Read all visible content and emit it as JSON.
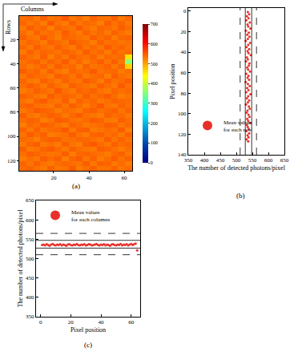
{
  "chart_data": [
    {
      "type": "heatmap",
      "panel_label": "(a)",
      "xlabel": "Columns",
      "ylabel": "Rows",
      "color": "jet",
      "x": [
        2.5,
        6.5,
        10.5,
        14.5,
        18.5,
        22.5,
        26.5,
        30.5,
        34.5,
        38.5,
        42.5,
        46.5,
        50.5,
        54.5,
        58.5,
        62.5
      ],
      "y": [
        2.5,
        6.5,
        10.5,
        14.5,
        18.5,
        22.5,
        26.5,
        30.5,
        34.5,
        38.5,
        42.5,
        46.5,
        50.5,
        54.5,
        58.5,
        62.5,
        66.5,
        70.5,
        74.5,
        78.5,
        82.5,
        86.5,
        90.5,
        94.5,
        98.5,
        102.5,
        106.5,
        110.5,
        114.5,
        118.5,
        122.5,
        126.5
      ],
      "cells": [
        [
          536,
          541,
          529,
          547,
          533,
          538,
          552,
          531,
          540,
          527,
          545,
          536,
          534,
          549,
          530,
          542
        ],
        [
          544,
          532,
          539,
          528,
          551,
          535,
          529,
          546,
          533,
          541,
          537,
          526,
          548,
          535,
          543,
          531
        ],
        [
          530,
          548,
          537,
          542,
          526,
          544,
          538,
          533,
          550,
          536,
          529,
          544,
          539,
          532,
          547,
          538
        ],
        [
          539,
          527,
          546,
          535,
          540,
          531,
          549,
          537,
          528,
          545,
          534,
          541,
          530,
          546,
          536,
          528
        ],
        [
          547,
          535,
          531,
          550,
          537,
          528,
          543,
          540,
          535,
          531,
          548,
          537,
          544,
          529,
          541,
          545
        ],
        [
          533,
          543,
          538,
          529,
          546,
          539,
          532,
          551,
          541,
          538,
          527,
          546,
          535,
          540,
          532,
          537
        ],
        [
          541,
          530,
          549,
          537,
          532,
          547,
          536,
          528,
          546,
          533,
          542,
          531,
          550,
          537,
          544,
          533
        ],
        [
          528,
          546,
          535,
          543,
          539,
          534,
          545,
          539,
          530,
          549,
          536,
          543,
          529,
          545,
          535,
          540
        ],
        [
          545,
          537,
          530,
          548,
          527,
          542,
          531,
          547,
          538,
          535,
          544,
          528,
          541,
          536,
          540,
          455
        ],
        [
          534,
          542,
          547,
          533,
          544,
          536,
          550,
          532,
          543,
          528,
          539,
          548,
          533,
          547,
          531,
          360
        ],
        [
          540,
          529,
          536,
          545,
          531,
          549,
          538,
          541,
          527,
          546,
          532,
          537,
          545,
          530,
          543,
          470
        ],
        [
          549,
          538,
          543,
          530,
          546,
          533,
          527,
          544,
          536,
          540,
          551,
          534,
          539,
          542,
          528,
          536
        ],
        [
          532,
          545,
          540,
          536,
          529,
          548,
          541,
          533,
          547,
          531,
          538,
          543,
          527,
          549,
          537,
          530
        ],
        [
          543,
          531,
          528,
          547,
          538,
          530,
          545,
          536,
          532,
          550,
          541,
          529,
          546,
          534,
          539,
          548
        ],
        [
          537,
          549,
          542,
          531,
          545,
          536,
          529,
          548,
          540,
          534,
          530,
          547,
          538,
          531,
          551,
          535
        ],
        [
          529,
          536,
          547,
          540,
          533,
          551,
          537,
          530,
          544,
          539,
          546,
          535,
          529,
          543,
          536,
          542
        ],
        [
          546,
          540,
          533,
          528,
          549,
          537,
          544,
          539,
          531,
          547,
          535,
          541,
          550,
          538,
          527,
          533
        ],
        [
          535,
          528,
          544,
          551,
          536,
          532,
          548,
          527,
          545,
          536,
          543,
          530,
          537,
          546,
          541,
          539
        ],
        [
          542,
          547,
          537,
          534,
          530,
          545,
          533,
          549,
          538,
          528,
          540,
          552,
          534,
          531,
          544,
          536
        ],
        [
          531,
          539,
          550,
          545,
          541,
          528,
          539,
          535,
          529,
          543,
          547,
          536,
          542,
          548,
          533,
          545
        ],
        [
          548,
          533,
          529,
          539,
          547,
          543,
          530,
          542,
          551,
          537,
          532,
          528,
          545,
          537,
          540,
          530
        ],
        [
          538,
          546,
          541,
          527,
          534,
          550,
          546,
          536,
          533,
          540,
          549,
          544,
          531,
          529,
          547,
          538
        ],
        [
          527,
          541,
          536,
          548,
          543,
          535,
          528,
          545,
          539,
          530,
          536,
          539,
          548,
          544,
          532,
          541
        ],
        [
          544,
          530,
          545,
          533,
          539,
          541,
          551,
          531,
          546,
          548,
          528,
          533,
          540,
          535,
          549,
          527
        ],
        [
          533,
          550,
          538,
          546,
          528,
          532,
          537,
          549,
          535,
          529,
          544,
          547,
          536,
          542,
          530,
          546
        ],
        [
          541,
          535,
          527,
          542,
          548,
          546,
          534,
          538,
          543,
          541,
          537,
          531,
          549,
          533,
          545,
          534
        ],
        [
          530,
          543,
          549,
          530,
          537,
          529,
          547,
          533,
          528,
          546,
          552,
          540,
          532,
          547,
          538,
          543
        ],
        [
          547,
          529,
          534,
          544,
          551,
          540,
          531,
          546,
          537,
          533,
          530,
          548,
          543,
          536,
          528,
          537
        ],
        [
          536,
          548,
          543,
          537,
          532,
          535,
          549,
          528,
          541,
          545,
          539,
          535,
          529,
          541,
          546,
          531
        ],
        [
          528,
          538,
          531,
          549,
          540,
          547,
          526,
          543,
          550,
          532,
          545,
          527,
          538,
          550,
          534,
          544
        ],
        [
          545,
          533,
          548,
          535,
          529,
          538,
          543,
          537,
          534,
          549,
          531,
          546,
          544,
          530,
          539,
          529
        ],
        [
          539,
          544,
          536,
          529,
          546,
          531,
          535,
          550,
          528,
          538,
          547,
          533,
          535,
          545,
          532,
          540
        ]
      ],
      "xlim": [
        0.5,
        64.5
      ],
      "xticks": [
        20,
        40,
        60
      ],
      "ylim": [
        128.5,
        0.5
      ],
      "yticks": [
        20,
        40,
        60,
        80,
        100,
        120
      ],
      "colorbar": {
        "range": [
          0,
          700
        ],
        "ticks": [
          0,
          100,
          200,
          300,
          400,
          500,
          600,
          700
        ]
      }
    },
    {
      "type": "scatter",
      "panel_label": "(b)",
      "xlabel": "The number of detected photons/pixel",
      "ylabel": "Pixel position",
      "legend": "lower left",
      "series": [
        {
          "name": "Mean values\nfor each row",
          "color": "#e8302a",
          "marker": "circle",
          "x": [
            536,
            540,
            533,
            538,
            531,
            542,
            535,
            537,
            544,
            530,
            539,
            534,
            541,
            536,
            529,
            543,
            537,
            532,
            540,
            535,
            538,
            545,
            533,
            536,
            530,
            541,
            539,
            534,
            537,
            543,
            531,
            538,
            535,
            540,
            529,
            536,
            542,
            534,
            538,
            531,
            544,
            537,
            533,
            540,
            536,
            530,
            539,
            542,
            535,
            532,
            538,
            541,
            534,
            537,
            543,
            533,
            536,
            539,
            531,
            540,
            535,
            538,
            532,
            537
          ],
          "y": [
            1,
            3,
            5,
            7,
            9,
            11,
            13,
            15,
            17,
            19,
            21,
            23,
            25,
            27,
            29,
            31,
            33,
            35,
            37,
            39,
            41,
            43,
            45,
            47,
            49,
            51,
            53,
            55,
            57,
            59,
            61,
            63,
            65,
            67,
            69,
            71,
            73,
            75,
            77,
            79,
            81,
            83,
            85,
            87,
            89,
            91,
            93,
            95,
            97,
            99,
            101,
            103,
            105,
            107,
            109,
            111,
            113,
            115,
            117,
            119,
            121,
            123,
            125,
            127
          ]
        }
      ],
      "x_lines": [
        {
          "value": 512,
          "line_style": "dashed"
        },
        {
          "value": 528,
          "line_style": "solid"
        },
        {
          "value": 548,
          "line_style": "solid"
        },
        {
          "value": 563,
          "line_style": "dashed"
        }
      ],
      "xlim": [
        350,
        650
      ],
      "xticks": [
        350,
        400,
        450,
        500,
        550,
        600,
        650
      ],
      "ylim": [
        140,
        -3
      ],
      "yticks": [
        0,
        20,
        40,
        60,
        80,
        100,
        120,
        140
      ]
    },
    {
      "type": "scatter",
      "panel_label": "(c)",
      "xlabel": "Pixel position",
      "ylabel": "The number of detected photons/pixel",
      "legend": "upper left",
      "series": [
        {
          "name": "Mean values\nfor each columns",
          "color": "#e8302a",
          "marker": "circle",
          "x": [
            1,
            2,
            3,
            4,
            5,
            6,
            7,
            8,
            9,
            10,
            11,
            12,
            13,
            14,
            15,
            16,
            17,
            18,
            19,
            20,
            21,
            22,
            23,
            24,
            25,
            26,
            27,
            28,
            29,
            30,
            31,
            32,
            33,
            34,
            35,
            36,
            37,
            38,
            39,
            40,
            41,
            42,
            43,
            44,
            45,
            46,
            47,
            48,
            49,
            50,
            51,
            52,
            53,
            54,
            55,
            56,
            57,
            58,
            59,
            60,
            61,
            62,
            63,
            64
          ],
          "y": [
            535,
            536,
            534,
            537,
            535,
            533,
            536,
            538,
            535,
            534,
            536,
            535,
            537,
            534,
            536,
            535,
            533,
            536,
            537,
            535,
            534,
            536,
            535,
            538,
            535,
            534,
            536,
            535,
            537,
            534,
            535,
            537,
            536,
            534,
            535,
            536,
            538,
            535,
            534,
            536,
            535,
            537,
            534,
            536,
            535,
            533,
            536,
            537,
            535,
            534,
            536,
            535,
            538,
            534,
            536,
            535,
            537,
            534,
            536,
            538,
            535,
            537,
            539,
            521
          ]
        }
      ],
      "y_lines": [
        {
          "value": 510,
          "line_style": "dashed"
        },
        {
          "value": 527,
          "line_style": "solid"
        },
        {
          "value": 547,
          "line_style": "solid"
        },
        {
          "value": 565,
          "line_style": "dashed"
        }
      ],
      "xlim": [
        -3,
        66
      ],
      "xticks": [
        0,
        20,
        40,
        60
      ],
      "ylim": [
        350,
        650
      ],
      "yticks": [
        350,
        400,
        450,
        500,
        550,
        600,
        650
      ]
    }
  ]
}
